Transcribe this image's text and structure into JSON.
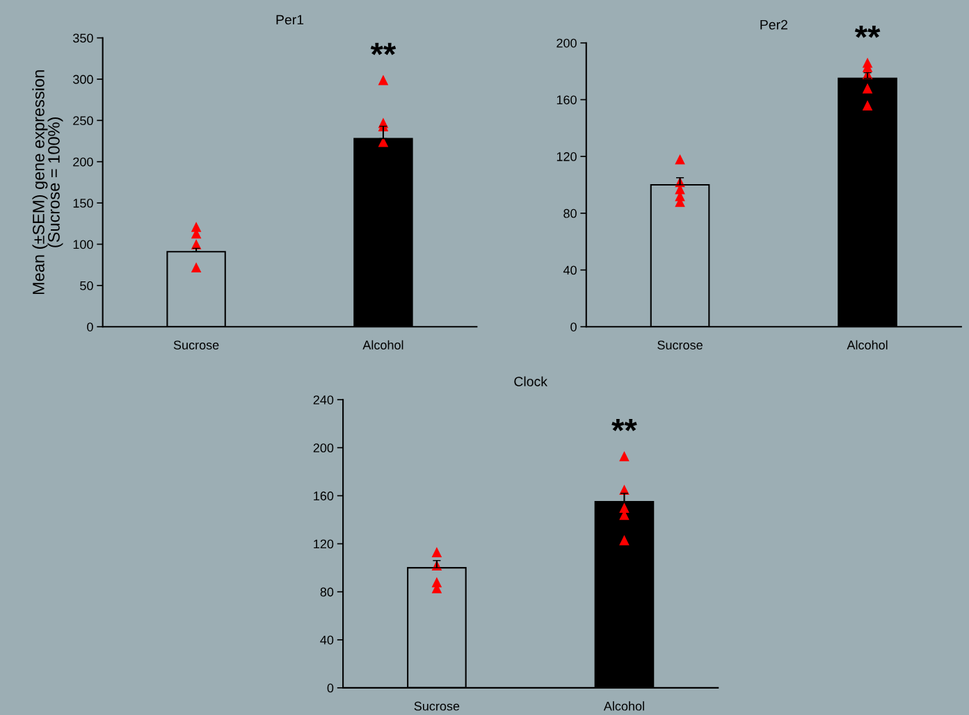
{
  "chart_data": [
    {
      "type": "bar",
      "title": "Per1",
      "ylabel": "Mean (±SEM) gene expression\n(Sucrose = 100%)",
      "categories": [
        "Sucrose",
        "Alcohol"
      ],
      "ylim": [
        0,
        350
      ],
      "yticks": [
        0,
        50,
        100,
        150,
        200,
        250,
        300,
        350
      ],
      "grid": false,
      "annotations": [
        "**"
      ],
      "series": [
        {
          "colors": [
            "#9caeb4",
            "#000000"
          ],
          "values": [
            91,
            228
          ],
          "errors": [
            [
              91,
              95
            ],
            [
              228,
              243
            ]
          ]
        },
        {
          "type": "scatter",
          "color": "#ff0000",
          "marker": "triangle",
          "x": [
            "Sucrose",
            "Sucrose",
            "Sucrose",
            "Sucrose",
            "Alcohol",
            "Alcohol",
            "Alcohol",
            "Alcohol"
          ],
          "values": [
            121,
            113,
            100,
            72,
            299,
            247,
            243,
            224
          ]
        }
      ]
    },
    {
      "type": "bar",
      "title": "Per2",
      "categories": [
        "Sucrose",
        "Alcohol"
      ],
      "ylim": [
        0,
        200
      ],
      "yticks": [
        0,
        40,
        80,
        120,
        160,
        200
      ],
      "grid": false,
      "annotations": [
        "**"
      ],
      "series": [
        {
          "colors": [
            "#9caeb4",
            "#000000"
          ],
          "values": [
            100,
            175
          ],
          "errors": [
            [
              100,
              105
            ],
            [
              175,
              179
            ]
          ]
        },
        {
          "type": "scatter",
          "color": "#ff0000",
          "marker": "triangle",
          "x": [
            "Sucrose",
            "Sucrose",
            "Sucrose",
            "Sucrose",
            "Sucrose",
            "Alcohol",
            "Alcohol",
            "Alcohol",
            "Alcohol",
            "Alcohol"
          ],
          "values": [
            118,
            102,
            97,
            92,
            88,
            186,
            183,
            178,
            168,
            156
          ]
        }
      ]
    },
    {
      "type": "bar",
      "title": "Clock",
      "categories": [
        "Sucrose",
        "Alcohol"
      ],
      "ylim": [
        0,
        240
      ],
      "yticks": [
        0,
        40,
        80,
        120,
        160,
        200,
        240
      ],
      "grid": false,
      "annotations": [
        "**"
      ],
      "series": [
        {
          "colors": [
            "#9caeb4",
            "#000000"
          ],
          "values": [
            100,
            155
          ],
          "errors": [
            [
              100,
              106
            ],
            [
              155,
              162
            ]
          ]
        },
        {
          "type": "scatter",
          "color": "#ff0000",
          "marker": "triangle",
          "x": [
            "Sucrose",
            "Sucrose",
            "Sucrose",
            "Sucrose",
            "Alcohol",
            "Alcohol",
            "Alcohol",
            "Alcohol",
            "Alcohol"
          ],
          "values": [
            113,
            102,
            88,
            83,
            193,
            165,
            150,
            144,
            123
          ]
        }
      ]
    }
  ]
}
